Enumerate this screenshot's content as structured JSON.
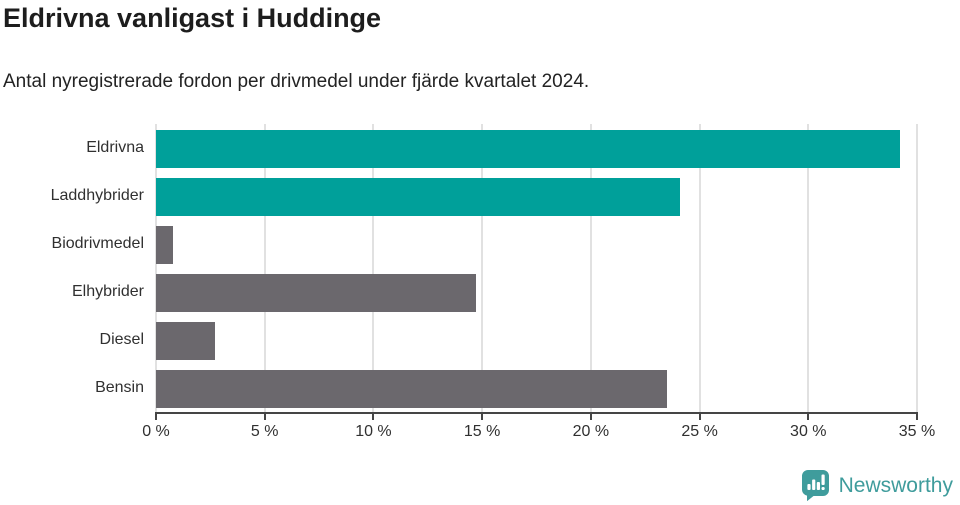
{
  "chart_data": {
    "type": "bar",
    "orientation": "horizontal",
    "title": "Eldrivna vanligast i Huddinge",
    "subtitle": "Antal nyregistrerade fordon per drivmedel under fjärde kvartalet 2024.",
    "categories": [
      "Eldrivna",
      "Laddhybrider",
      "Biodrivmedel",
      "Elhybrider",
      "Diesel",
      "Bensin"
    ],
    "values": [
      34.2,
      24.1,
      0.8,
      14.7,
      2.7,
      23.5
    ],
    "unit": "%",
    "bar_colors": [
      "#00a09a",
      "#00a09a",
      "#6b686d",
      "#6b686d",
      "#6b686d",
      "#6b686d"
    ],
    "highlight_color": "#00a09a",
    "default_color": "#6b686d",
    "xlim": [
      0,
      35
    ],
    "x_ticks": [
      0,
      5,
      10,
      15,
      20,
      25,
      30,
      35
    ],
    "x_tick_labels": [
      "0 %",
      "5 %",
      "10 %",
      "15 %",
      "20 %",
      "25 %",
      "30 %",
      "35 %"
    ],
    "grid": "vertical",
    "legend": "none",
    "axis_color": "#454545",
    "gridline_color": "#e1e1e1",
    "label_color": "#303030"
  },
  "footer": {
    "brand": "Newsworthy",
    "brand_color": "#3f9c9c"
  }
}
